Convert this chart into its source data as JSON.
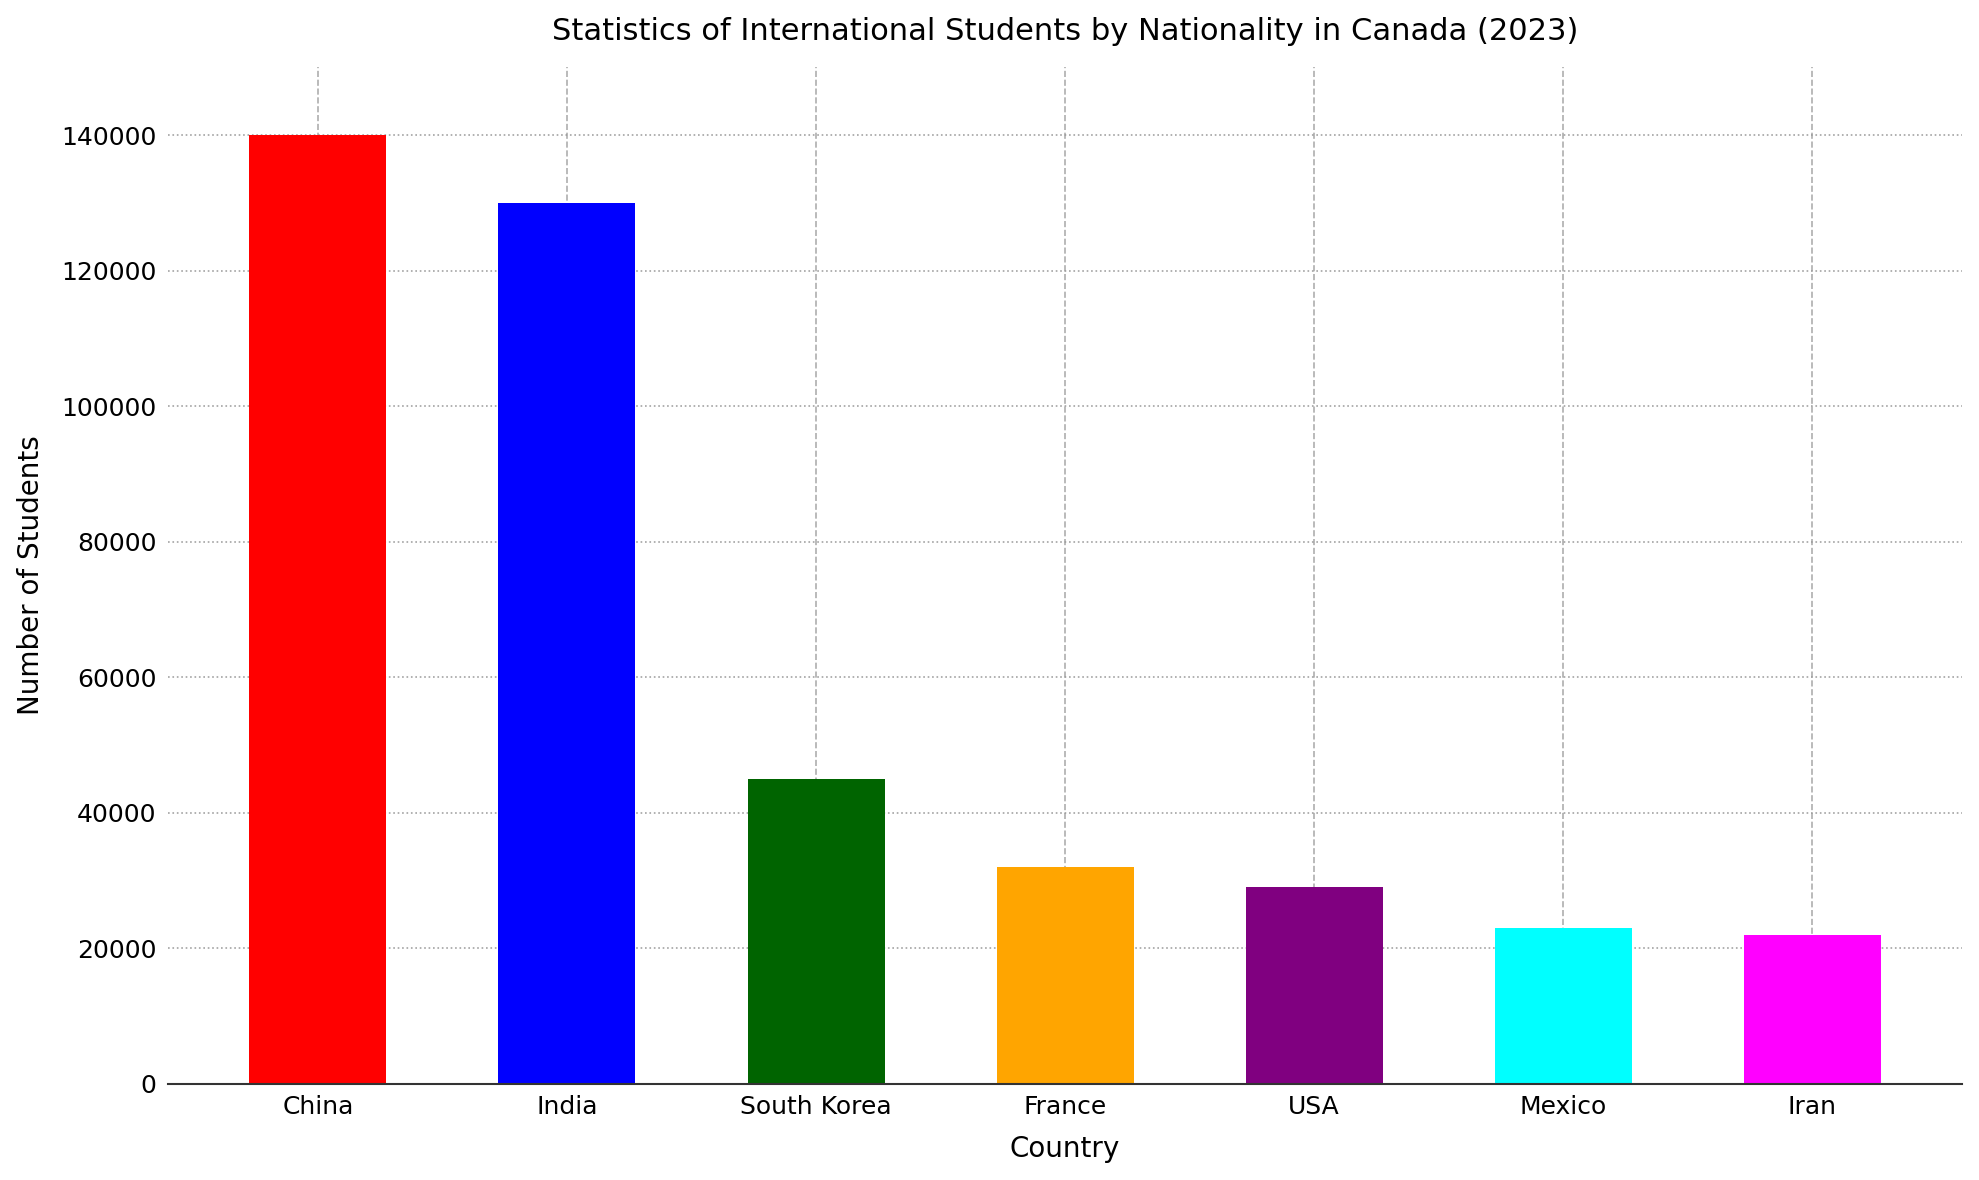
{
  "title": "Statistics of International Students by Nationality in Canada (2023)",
  "xlabel": "Country",
  "ylabel": "Number of Students",
  "categories": [
    "China",
    "India",
    "South Korea",
    "France",
    "USA",
    "Mexico",
    "Iran"
  ],
  "values": [
    140000,
    130000,
    45000,
    32000,
    29000,
    23000,
    22000
  ],
  "bar_colors": [
    "#ff0000",
    "#0000ff",
    "#006400",
    "#ffa500",
    "#800080",
    "#00ffff",
    "#ff00ff"
  ],
  "ylim": [
    0,
    150000
  ],
  "yticks": [
    0,
    20000,
    40000,
    60000,
    80000,
    100000,
    120000,
    140000
  ],
  "background_color": "#ffffff",
  "title_fontsize": 22,
  "label_fontsize": 20,
  "tick_fontsize": 18,
  "bar_width": 0.55,
  "grid_color": "#999999",
  "grid_linestyle": "--",
  "grid_alpha": 0.8,
  "hgrid_linestyle": ":",
  "hgrid_color": "#999999",
  "hgrid_alpha": 0.9
}
